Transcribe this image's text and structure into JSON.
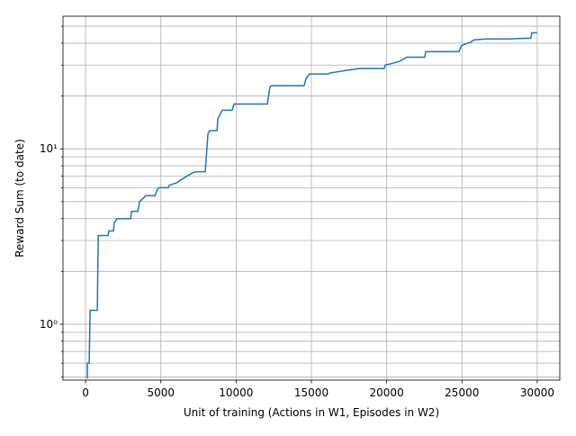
{
  "chart_data": {
    "type": "line",
    "xlabel": "Unit of training (Actions in W1, Episodes in W2)",
    "ylabel": "Reward Sum (to date)",
    "xlim": [
      -1500,
      31500
    ],
    "ylim": [
      0.48,
      57
    ],
    "yscale": "log",
    "grid": true,
    "xticks": [
      0,
      5000,
      10000,
      15000,
      20000,
      25000,
      30000
    ],
    "yticks": [
      {
        "value": 1,
        "label": "10⁰"
      },
      {
        "value": 10,
        "label": "10¹"
      }
    ],
    "yticks_minor": [
      0.5,
      0.6,
      0.7,
      0.8,
      0.9,
      2,
      3,
      4,
      5,
      6,
      7,
      8,
      9,
      20,
      30,
      40,
      50
    ],
    "series": [
      {
        "color": "#1f77b4",
        "x": [
          120,
          120,
          240,
          300,
          780,
          840,
          1490,
          1550,
          1850,
          1910,
          2090,
          2990,
          3050,
          3470,
          3590,
          4000,
          4600,
          4780,
          4900,
          5500,
          5560,
          6040,
          6510,
          7110,
          7350,
          7950,
          8130,
          8250,
          8730,
          8790,
          9080,
          9740,
          9860,
          12070,
          12250,
          12370,
          14520,
          14640,
          14880,
          16130,
          16190,
          17210,
          18220,
          19840,
          19900,
          20380,
          20860,
          21330,
          22530,
          22590,
          24800,
          24980,
          25520,
          25820,
          26590,
          28090,
          29580,
          29640,
          30000
        ],
        "values": [
          0.49,
          0.6,
          0.6,
          1.2,
          1.2,
          3.2,
          3.2,
          3.4,
          3.4,
          3.8,
          4.0,
          4.0,
          4.4,
          4.4,
          5.0,
          5.4,
          5.4,
          5.9,
          6.0,
          6.0,
          6.2,
          6.4,
          6.8,
          7.3,
          7.4,
          7.4,
          12.2,
          12.7,
          12.7,
          14.8,
          16.6,
          16.6,
          18.0,
          18.0,
          22.6,
          22.9,
          22.9,
          25.1,
          26.7,
          26.7,
          27.0,
          27.9,
          28.7,
          28.7,
          30.0,
          30.7,
          31.5,
          33.3,
          33.3,
          35.8,
          35.8,
          38.9,
          40.3,
          41.8,
          42.3,
          42.3,
          42.8,
          45.9,
          45.9
        ]
      }
    ]
  }
}
